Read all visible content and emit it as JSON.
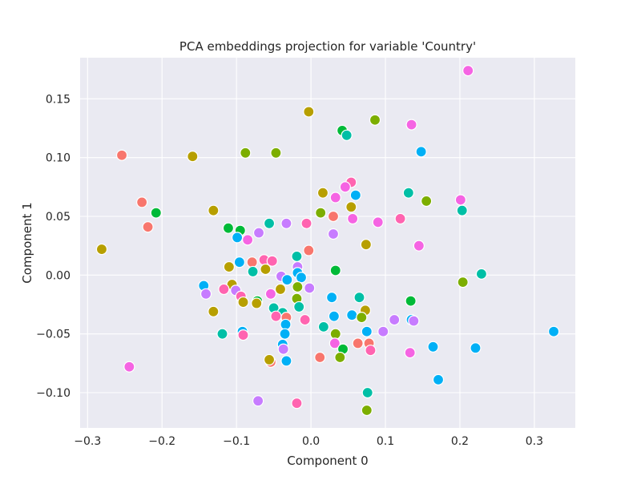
{
  "chart_data": {
    "type": "scatter",
    "title": "PCA embeddings projection for variable 'Country'",
    "xlabel": "Component 0",
    "ylabel": "Component 1",
    "xlim": [
      -0.31,
      0.355
    ],
    "ylim": [
      -0.13,
      0.185
    ],
    "xticks": [
      -0.3,
      -0.2,
      -0.1,
      0.0,
      0.1,
      0.2,
      0.3
    ],
    "xtick_labels": [
      "−0.3",
      "−0.2",
      "−0.1",
      "0.0",
      "0.1",
      "0.2",
      "0.3"
    ],
    "yticks": [
      -0.1,
      -0.05,
      0.0,
      0.05,
      0.1,
      0.15
    ],
    "ytick_labels": [
      "−0.10",
      "−0.05",
      "0.00",
      "0.05",
      "0.10",
      "0.15"
    ],
    "grid": true,
    "background": "#eaeaf2",
    "legend": "none",
    "points": [
      {
        "x": 0.211,
        "y": 0.174,
        "c": "#f564e3"
      },
      {
        "x": -0.003,
        "y": 0.139,
        "c": "#b79f00"
      },
      {
        "x": 0.042,
        "y": 0.123,
        "c": "#00ba38"
      },
      {
        "x": 0.086,
        "y": 0.132,
        "c": "#7cae00"
      },
      {
        "x": 0.135,
        "y": 0.128,
        "c": "#f564e3"
      },
      {
        "x": 0.048,
        "y": 0.119,
        "c": "#00bfa6"
      },
      {
        "x": 0.148,
        "y": 0.105,
        "c": "#00b0f6"
      },
      {
        "x": -0.254,
        "y": 0.102,
        "c": "#f8766d"
      },
      {
        "x": -0.159,
        "y": 0.101,
        "c": "#b79f00"
      },
      {
        "x": -0.088,
        "y": 0.104,
        "c": "#7cae00"
      },
      {
        "x": -0.047,
        "y": 0.104,
        "c": "#7cae00"
      },
      {
        "x": 0.054,
        "y": 0.079,
        "c": "#ff64b0"
      },
      {
        "x": 0.046,
        "y": 0.075,
        "c": "#f564e3"
      },
      {
        "x": 0.016,
        "y": 0.07,
        "c": "#b79f00"
      },
      {
        "x": 0.06,
        "y": 0.068,
        "c": "#00b0f6"
      },
      {
        "x": 0.131,
        "y": 0.07,
        "c": "#00bfa6"
      },
      {
        "x": 0.033,
        "y": 0.066,
        "c": "#f564e3"
      },
      {
        "x": 0.155,
        "y": 0.063,
        "c": "#7cae00"
      },
      {
        "x": 0.201,
        "y": 0.064,
        "c": "#f564e3"
      },
      {
        "x": -0.227,
        "y": 0.062,
        "c": "#f8766d"
      },
      {
        "x": -0.208,
        "y": 0.053,
        "c": "#00ba38"
      },
      {
        "x": -0.131,
        "y": 0.055,
        "c": "#b79f00"
      },
      {
        "x": 0.054,
        "y": 0.058,
        "c": "#b79f00"
      },
      {
        "x": 0.013,
        "y": 0.053,
        "c": "#7cae00"
      },
      {
        "x": 0.203,
        "y": 0.055,
        "c": "#00bfa6"
      },
      {
        "x": 0.03,
        "y": 0.05,
        "c": "#f8766d"
      },
      {
        "x": 0.056,
        "y": 0.048,
        "c": "#f564e3"
      },
      {
        "x": 0.09,
        "y": 0.045,
        "c": "#f564e3"
      },
      {
        "x": 0.12,
        "y": 0.048,
        "c": "#ff64b0"
      },
      {
        "x": -0.219,
        "y": 0.041,
        "c": "#f8766d"
      },
      {
        "x": -0.111,
        "y": 0.04,
        "c": "#00ba38"
      },
      {
        "x": -0.095,
        "y": 0.038,
        "c": "#00ba38"
      },
      {
        "x": -0.056,
        "y": 0.044,
        "c": "#00bfa6"
      },
      {
        "x": -0.033,
        "y": 0.044,
        "c": "#c77cff"
      },
      {
        "x": -0.006,
        "y": 0.044,
        "c": "#ff64b0"
      },
      {
        "x": -0.07,
        "y": 0.036,
        "c": "#c77cff"
      },
      {
        "x": -0.099,
        "y": 0.032,
        "c": "#00b0f6"
      },
      {
        "x": -0.085,
        "y": 0.03,
        "c": "#f564e3"
      },
      {
        "x": 0.03,
        "y": 0.035,
        "c": "#c77cff"
      },
      {
        "x": 0.074,
        "y": 0.026,
        "c": "#b79f00"
      },
      {
        "x": 0.145,
        "y": 0.025,
        "c": "#f564e3"
      },
      {
        "x": -0.281,
        "y": 0.022,
        "c": "#b79f00"
      },
      {
        "x": -0.003,
        "y": 0.021,
        "c": "#f8766d"
      },
      {
        "x": -0.019,
        "y": 0.016,
        "c": "#00bfa6"
      },
      {
        "x": -0.096,
        "y": 0.011,
        "c": "#00b0f6"
      },
      {
        "x": -0.079,
        "y": 0.011,
        "c": "#f8766d"
      },
      {
        "x": -0.063,
        "y": 0.013,
        "c": "#ff64b0"
      },
      {
        "x": -0.052,
        "y": 0.012,
        "c": "#ff64b0"
      },
      {
        "x": -0.11,
        "y": 0.007,
        "c": "#b79f00"
      },
      {
        "x": -0.061,
        "y": 0.005,
        "c": "#b79f00"
      },
      {
        "x": -0.078,
        "y": 0.003,
        "c": "#00bfa6"
      },
      {
        "x": -0.018,
        "y": 0.007,
        "c": "#c77cff"
      },
      {
        "x": 0.033,
        "y": 0.004,
        "c": "#00ba38"
      },
      {
        "x": -0.018,
        "y": 0.002,
        "c": "#00b0f6"
      },
      {
        "x": -0.04,
        "y": -0.001,
        "c": "#c77cff"
      },
      {
        "x": -0.032,
        "y": -0.004,
        "c": "#00b0f6"
      },
      {
        "x": -0.013,
        "y": -0.002,
        "c": "#00b0f6"
      },
      {
        "x": -0.144,
        "y": -0.009,
        "c": "#00b0f6"
      },
      {
        "x": -0.106,
        "y": -0.008,
        "c": "#b79f00"
      },
      {
        "x": -0.117,
        "y": -0.012,
        "c": "#ff64b0"
      },
      {
        "x": -0.101,
        "y": -0.013,
        "c": "#c77cff"
      },
      {
        "x": -0.041,
        "y": -0.012,
        "c": "#b79f00"
      },
      {
        "x": -0.018,
        "y": -0.01,
        "c": "#7cae00"
      },
      {
        "x": -0.002,
        "y": -0.011,
        "c": "#c77cff"
      },
      {
        "x": -0.141,
        "y": -0.016,
        "c": "#c77cff"
      },
      {
        "x": -0.054,
        "y": -0.016,
        "c": "#f564e3"
      },
      {
        "x": -0.094,
        "y": -0.018,
        "c": "#ff64b0"
      },
      {
        "x": -0.091,
        "y": -0.023,
        "c": "#b79f00"
      },
      {
        "x": -0.072,
        "y": -0.022,
        "c": "#00ba38"
      },
      {
        "x": -0.073,
        "y": -0.024,
        "c": "#b79f00"
      },
      {
        "x": -0.019,
        "y": -0.02,
        "c": "#7cae00"
      },
      {
        "x": 0.028,
        "y": -0.019,
        "c": "#00b0f6"
      },
      {
        "x": 0.065,
        "y": -0.019,
        "c": "#00bfa6"
      },
      {
        "x": 0.204,
        "y": -0.006,
        "c": "#7cae00"
      },
      {
        "x": 0.229,
        "y": 0.001,
        "c": "#00bfa6"
      },
      {
        "x": 0.134,
        "y": -0.022,
        "c": "#00ba38"
      },
      {
        "x": -0.016,
        "y": -0.027,
        "c": "#00bfa6"
      },
      {
        "x": -0.131,
        "y": -0.031,
        "c": "#b79f00"
      },
      {
        "x": -0.05,
        "y": -0.028,
        "c": "#00bfa6"
      },
      {
        "x": -0.038,
        "y": -0.032,
        "c": "#00bfa6"
      },
      {
        "x": -0.047,
        "y": -0.035,
        "c": "#ff64b0"
      },
      {
        "x": -0.033,
        "y": -0.036,
        "c": "#f8766d"
      },
      {
        "x": -0.034,
        "y": -0.042,
        "c": "#00b0f6"
      },
      {
        "x": 0.031,
        "y": -0.035,
        "c": "#00b0f6"
      },
      {
        "x": 0.055,
        "y": -0.034,
        "c": "#00b0f6"
      },
      {
        "x": 0.073,
        "y": -0.03,
        "c": "#b79f00"
      },
      {
        "x": 0.068,
        "y": -0.036,
        "c": "#7cae00"
      },
      {
        "x": 0.112,
        "y": -0.038,
        "c": "#c77cff"
      },
      {
        "x": 0.135,
        "y": -0.038,
        "c": "#00b0f6"
      },
      {
        "x": 0.138,
        "y": -0.039,
        "c": "#c77cff"
      },
      {
        "x": -0.008,
        "y": -0.038,
        "c": "#ff64b0"
      },
      {
        "x": 0.017,
        "y": -0.044,
        "c": "#00bfa6"
      },
      {
        "x": -0.119,
        "y": -0.05,
        "c": "#00bfa6"
      },
      {
        "x": -0.092,
        "y": -0.048,
        "c": "#00b0f6"
      },
      {
        "x": -0.091,
        "y": -0.051,
        "c": "#ff64b0"
      },
      {
        "x": -0.035,
        "y": -0.05,
        "c": "#00b0f6"
      },
      {
        "x": 0.033,
        "y": -0.05,
        "c": "#7cae00"
      },
      {
        "x": 0.075,
        "y": -0.048,
        "c": "#00b0f6"
      },
      {
        "x": 0.097,
        "y": -0.048,
        "c": "#c77cff"
      },
      {
        "x": 0.326,
        "y": -0.048,
        "c": "#00b0f6"
      },
      {
        "x": -0.038,
        "y": -0.059,
        "c": "#00b0f6"
      },
      {
        "x": -0.037,
        "y": -0.063,
        "c": "#c77cff"
      },
      {
        "x": 0.032,
        "y": -0.058,
        "c": "#f564e3"
      },
      {
        "x": 0.063,
        "y": -0.058,
        "c": "#f8766d"
      },
      {
        "x": 0.078,
        "y": -0.058,
        "c": "#f8766d"
      },
      {
        "x": 0.043,
        "y": -0.063,
        "c": "#00ba38"
      },
      {
        "x": 0.08,
        "y": -0.064,
        "c": "#ff64b0"
      },
      {
        "x": 0.133,
        "y": -0.066,
        "c": "#f564e3"
      },
      {
        "x": 0.164,
        "y": -0.061,
        "c": "#00b0f6"
      },
      {
        "x": 0.221,
        "y": -0.062,
        "c": "#00b0f6"
      },
      {
        "x": 0.012,
        "y": -0.07,
        "c": "#f8766d"
      },
      {
        "x": 0.039,
        "y": -0.07,
        "c": "#7cae00"
      },
      {
        "x": -0.054,
        "y": -0.074,
        "c": "#f8766d"
      },
      {
        "x": -0.056,
        "y": -0.072,
        "c": "#b79f00"
      },
      {
        "x": -0.033,
        "y": -0.073,
        "c": "#00b0f6"
      },
      {
        "x": -0.244,
        "y": -0.078,
        "c": "#f564e3"
      },
      {
        "x": 0.171,
        "y": -0.089,
        "c": "#00b0f6"
      },
      {
        "x": 0.076,
        "y": -0.1,
        "c": "#00bfa6"
      },
      {
        "x": -0.071,
        "y": -0.107,
        "c": "#c77cff"
      },
      {
        "x": -0.019,
        "y": -0.109,
        "c": "#ff64b0"
      },
      {
        "x": 0.075,
        "y": -0.115,
        "c": "#7cae00"
      }
    ]
  }
}
